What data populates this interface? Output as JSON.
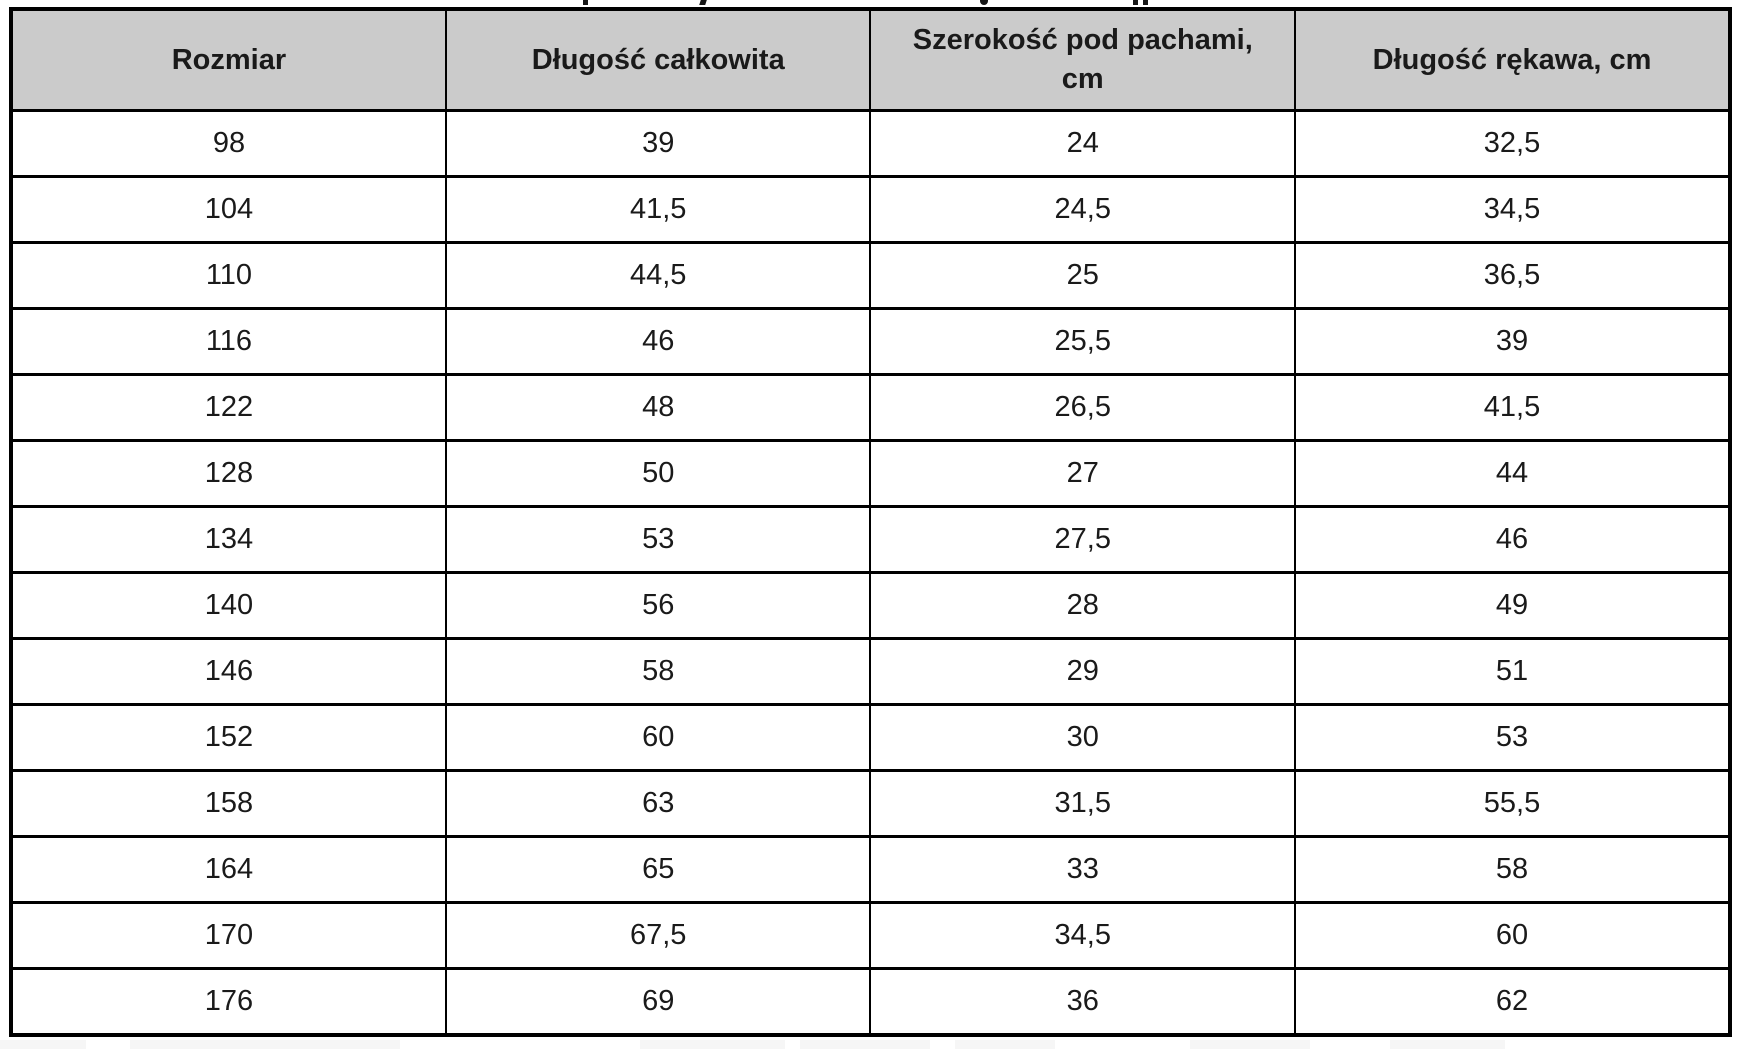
{
  "table": {
    "columns": [
      "Rozmiar",
      "Długość całkowita",
      "Szerokość pod pachami, cm",
      "Długość rękawa, cm"
    ],
    "rows": [
      [
        "98",
        "39",
        "24",
        "32,5"
      ],
      [
        "104",
        "41,5",
        "24,5",
        "34,5"
      ],
      [
        "110",
        "44,5",
        "25",
        "36,5"
      ],
      [
        "116",
        "46",
        "25,5",
        "39"
      ],
      [
        "122",
        "48",
        "26,5",
        "41,5"
      ],
      [
        "128",
        "50",
        "27",
        "44"
      ],
      [
        "134",
        "53",
        "27,5",
        "46"
      ],
      [
        "140",
        "56",
        "28",
        "49"
      ],
      [
        "146",
        "58",
        "29",
        "51"
      ],
      [
        "152",
        "60",
        "30",
        "53"
      ],
      [
        "158",
        "63",
        "31,5",
        "55,5"
      ],
      [
        "164",
        "65",
        "33",
        "58"
      ],
      [
        "170",
        "67,5",
        "34,5",
        "60"
      ],
      [
        "176",
        "69",
        "36",
        "62"
      ]
    ]
  },
  "colors": {
    "header_background": "#cbcbcb",
    "border": "#000000",
    "text": "#1a1a1a",
    "page_background": "#ffffff"
  },
  "chart_data": {
    "type": "table",
    "columns": [
      "Rozmiar",
      "Długość całkowita",
      "Szerokość pod pachami, cm",
      "Długość rękawa, cm"
    ],
    "rows": [
      [
        "98",
        "39",
        "24",
        "32,5"
      ],
      [
        "104",
        "41,5",
        "24,5",
        "34,5"
      ],
      [
        "110",
        "44,5",
        "25",
        "36,5"
      ],
      [
        "116",
        "46",
        "25,5",
        "39"
      ],
      [
        "122",
        "48",
        "26,5",
        "41,5"
      ],
      [
        "128",
        "50",
        "27",
        "44"
      ],
      [
        "134",
        "53",
        "27,5",
        "46"
      ],
      [
        "140",
        "56",
        "28",
        "49"
      ],
      [
        "146",
        "58",
        "29",
        "51"
      ],
      [
        "152",
        "60",
        "30",
        "53"
      ],
      [
        "158",
        "63",
        "31,5",
        "55,5"
      ],
      [
        "164",
        "65",
        "33",
        "58"
      ],
      [
        "170",
        "67,5",
        "34,5",
        "60"
      ],
      [
        "176",
        "69",
        "36",
        "62"
      ]
    ]
  }
}
